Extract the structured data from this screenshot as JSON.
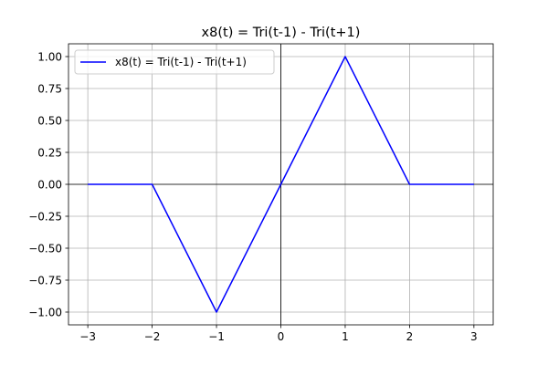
{
  "chart_data": {
    "type": "line",
    "title": "x8(t) = Tri(t-1) - Tri(t+1)",
    "xlabel": "",
    "ylabel": "",
    "xlim": [
      -3.3,
      3.3
    ],
    "ylim": [
      -1.1,
      1.1
    ],
    "xticks": [
      -3,
      -2,
      -1,
      0,
      1,
      2,
      3
    ],
    "xtick_labels": [
      "−3",
      "−2",
      "−1",
      "0",
      "1",
      "2",
      "3"
    ],
    "yticks": [
      -1.0,
      -0.75,
      -0.5,
      -0.25,
      0.0,
      0.25,
      0.5,
      0.75,
      1.0
    ],
    "ytick_labels": [
      "−1.00",
      "−0.75",
      "−0.50",
      "−0.25",
      "0.00",
      "0.25",
      "0.50",
      "0.75",
      "1.00"
    ],
    "grid": true,
    "zero_axes": true,
    "legend_position": "top-left",
    "series": [
      {
        "name": "x8(t) = Tri(t-1) - Tri(t+1)",
        "color": "#0000ff",
        "x": [
          -3,
          -2,
          -1,
          0,
          1,
          2,
          3
        ],
        "y": [
          0,
          0,
          -1,
          0,
          1,
          0,
          0
        ]
      }
    ]
  }
}
